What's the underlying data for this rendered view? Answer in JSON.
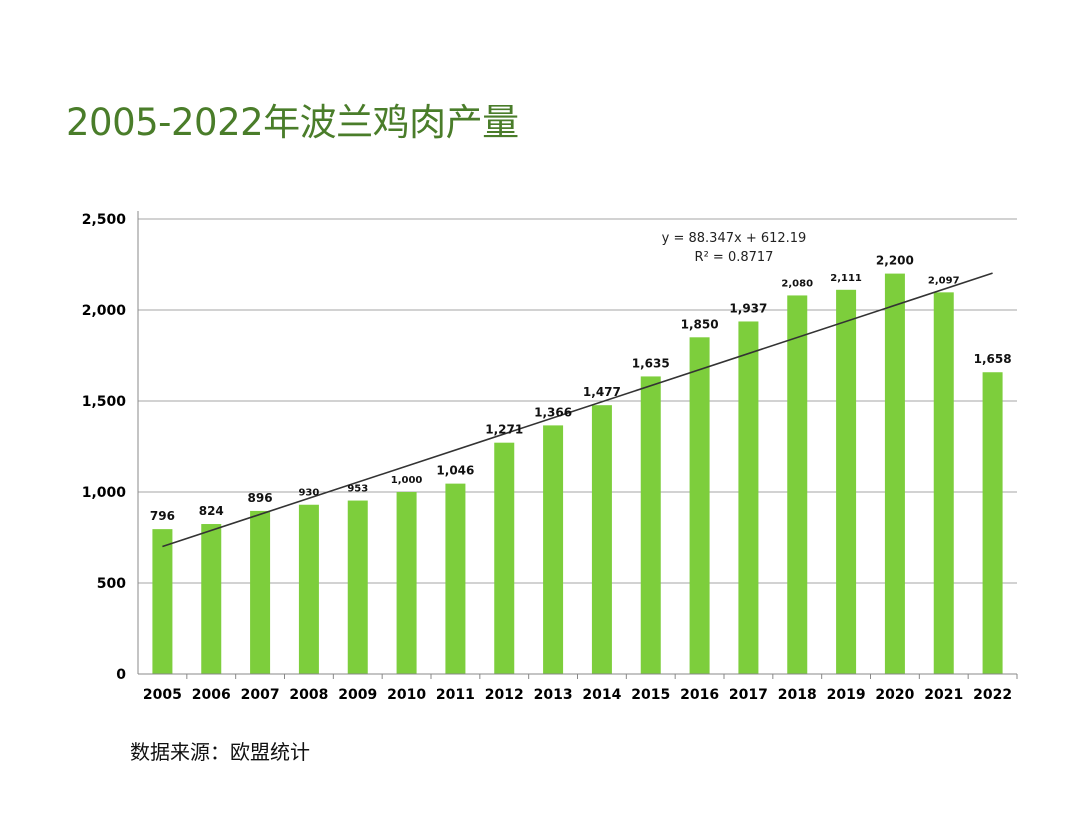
{
  "title": "2005-2022年波兰鸡肉产量",
  "source": "数据来源：欧盟统计",
  "colors": {
    "title": "#4a7d2a",
    "bar": "#7dce3c",
    "trend": "#333333",
    "grid": "#a6a6a6"
  },
  "chart_data": {
    "type": "bar",
    "categories": [
      "2005",
      "2006",
      "2007",
      "2008",
      "2009",
      "2010",
      "2011",
      "2012",
      "2013",
      "2014",
      "2015",
      "2016",
      "2017",
      "2018",
      "2019",
      "2020",
      "2021",
      "2022"
    ],
    "values": [
      796,
      824,
      896,
      930,
      953,
      1000,
      1046,
      1271,
      1366,
      1477,
      1635,
      1850,
      1937,
      2080,
      2111,
      2200,
      2097,
      1658
    ],
    "value_labels": [
      "796",
      "824",
      "896",
      "930",
      "953",
      "1,000",
      "1,046",
      "1,271",
      "1,366",
      "1,477",
      "1,635",
      "1,850",
      "1,937",
      "2,080",
      "2,111",
      "2,200",
      "2,097",
      "1,658"
    ],
    "ylim": [
      0,
      2500
    ],
    "yticks": [
      0,
      500,
      1000,
      1500,
      2000,
      2500
    ],
    "ytick_labels": [
      "0",
      "500",
      "1,000",
      "1,500",
      "2,000",
      "2,500"
    ],
    "grid": true,
    "trendline": {
      "slope": 88.347,
      "intercept": 612.19,
      "equation": "y = 88.347x + 612.19",
      "r2": "R² = 0.8717"
    }
  }
}
